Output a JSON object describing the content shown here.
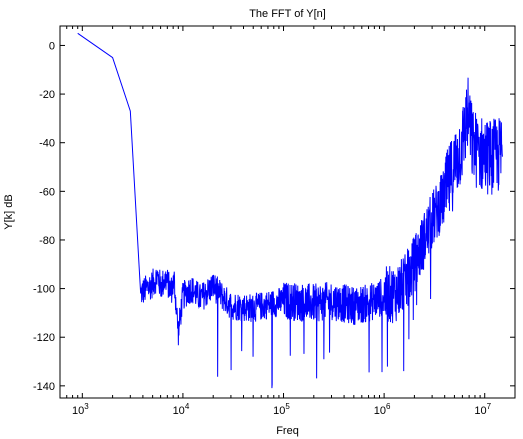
{
  "chart_data": {
    "type": "line",
    "title": "The FFT of Y[n]",
    "xlabel": "Freq",
    "ylabel": "Y[k] dB",
    "xscale": "log",
    "xlim": [
      600,
      20000000
    ],
    "ylim": [
      -145,
      8
    ],
    "x_ticks": [
      {
        "value": 1000,
        "base": "10",
        "exp": "3"
      },
      {
        "value": 10000,
        "base": "10",
        "exp": "4"
      },
      {
        "value": 100000,
        "base": "10",
        "exp": "5"
      },
      {
        "value": 1000000,
        "base": "10",
        "exp": "6"
      },
      {
        "value": 10000000,
        "base": "10",
        "exp": "7"
      }
    ],
    "y_ticks": [
      0,
      -20,
      -40,
      -60,
      -80,
      -100,
      -120,
      -140
    ],
    "y_tick_labels": [
      "0",
      "-20",
      "-40",
      "-60",
      "-80",
      "-100",
      "-120",
      "-140"
    ],
    "grid": false,
    "line_color": "#0000ff",
    "series": [
      {
        "x": [
          900,
          2000,
          3000,
          3800,
          5000,
          5600,
          6000,
          6800,
          7600,
          8200,
          9000,
          10000,
          12000,
          15000,
          20000,
          30000,
          50000,
          80000,
          100000,
          200000,
          300000,
          500000,
          700000,
          1000000,
          1300000,
          1600000,
          2000000,
          2500000,
          3000000,
          4000000,
          5000000,
          6000000,
          6800000,
          7500000,
          8500000,
          10000000,
          12000000,
          14000000,
          15000000
        ],
        "y": [
          5,
          -5,
          -27,
          -102,
          -98,
          -95,
          -99,
          -96,
          -101,
          -97,
          -118,
          -103,
          -100,
          -104,
          -99,
          -107,
          -108,
          -106,
          -105,
          -106,
          -105,
          -107,
          -106,
          -103,
          -102,
          -98,
          -90,
          -80,
          -72,
          -62,
          -50,
          -40,
          -28,
          -40,
          -44,
          -45,
          -46,
          -45,
          -44
        ]
      }
    ]
  }
}
